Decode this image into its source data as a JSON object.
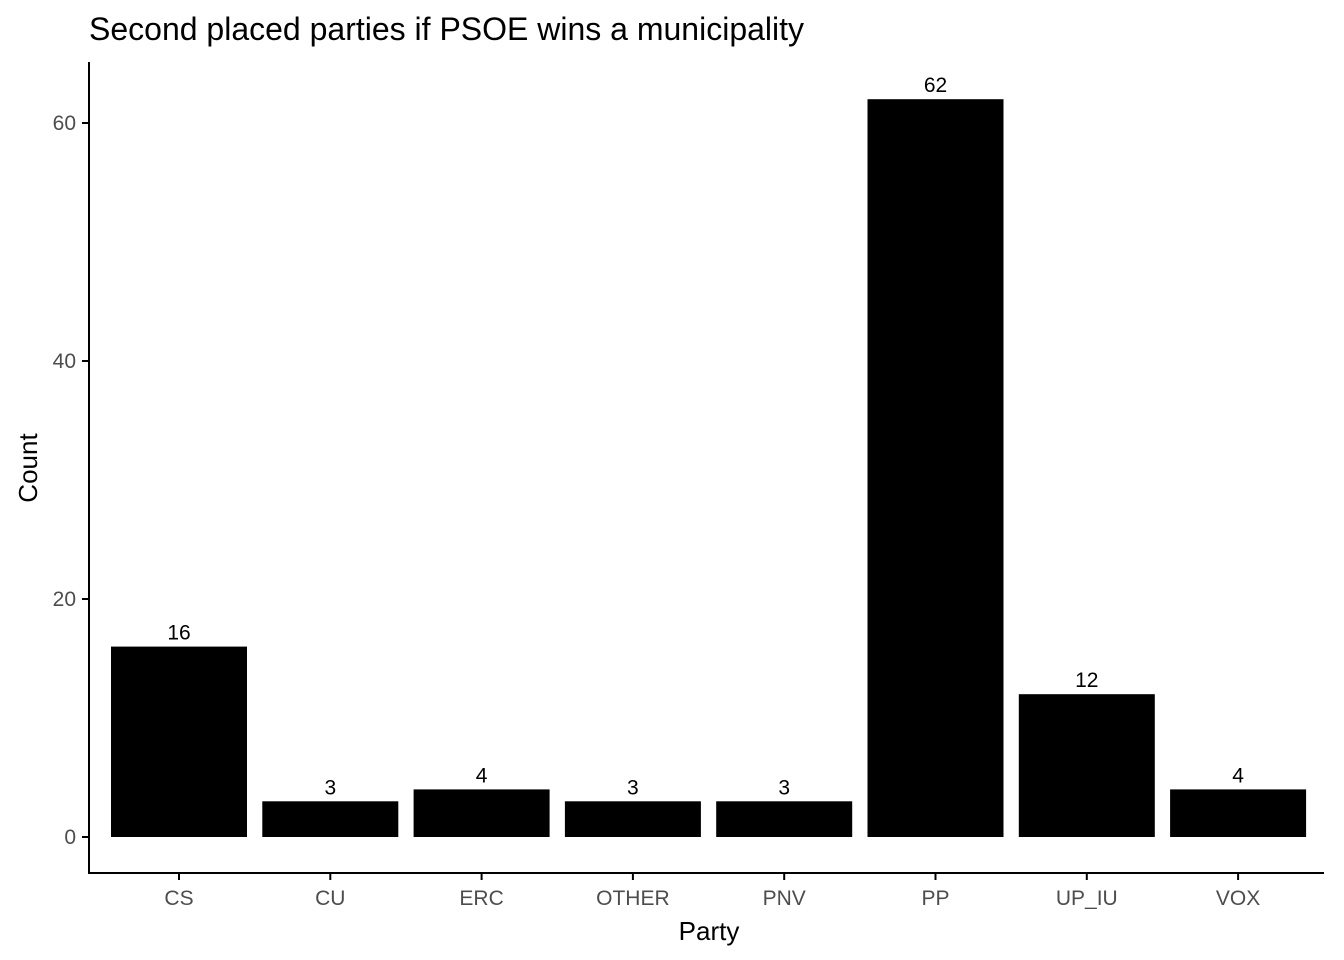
{
  "chart_data": {
    "type": "bar",
    "title": "Second placed parties if PSOE wins a municipality",
    "xlabel": "Party",
    "ylabel": "Count",
    "categories": [
      "CS",
      "CU",
      "ERC",
      "OTHER",
      "PNV",
      "PP",
      "UP_IU",
      "VOX"
    ],
    "values": [
      16,
      3,
      4,
      3,
      3,
      62,
      12,
      4
    ],
    "data_labels": [
      "16",
      "3",
      "4",
      "3",
      "3",
      "62",
      "12",
      "4"
    ],
    "ylim": [
      0,
      65
    ],
    "yticks": [
      0,
      20,
      40,
      60
    ],
    "ytick_labels": [
      "0",
      "20",
      "40",
      "60"
    ],
    "grid": false,
    "legend": "none",
    "bar_color": "#000000"
  }
}
